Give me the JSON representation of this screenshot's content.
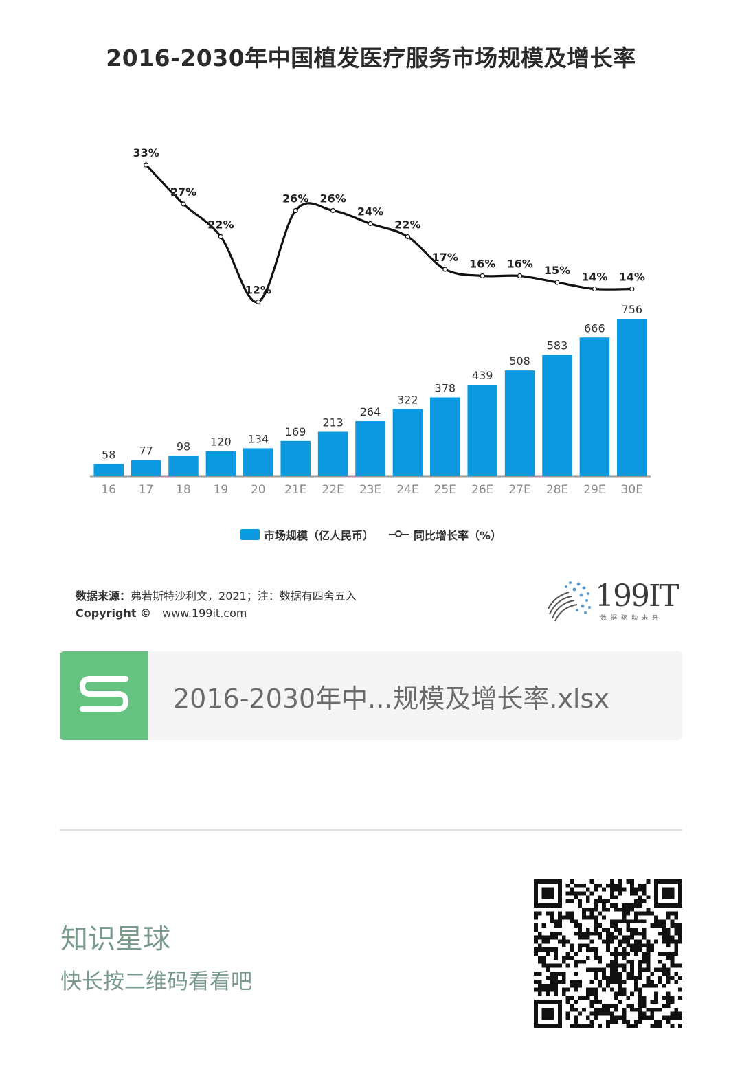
{
  "chart_data": {
    "type": "bar",
    "title": "2016-2030年中国植发医疗服务市场规模及增长率",
    "categories": [
      "16",
      "17",
      "18",
      "19",
      "20",
      "21E",
      "22E",
      "23E",
      "24E",
      "25E",
      "26E",
      "27E",
      "28E",
      "29E",
      "30E"
    ],
    "series": [
      {
        "name": "市场规模（亿人民币）",
        "type": "bar",
        "values": [
          58,
          77,
          98,
          120,
          134,
          169,
          213,
          264,
          322,
          378,
          439,
          508,
          583,
          666,
          756
        ]
      },
      {
        "name": "同比增长率（%）",
        "type": "line",
        "values": [
          null,
          33,
          27,
          22,
          12,
          26,
          26,
          24,
          22,
          17,
          16,
          16,
          15,
          14,
          14
        ]
      }
    ],
    "legend_position": "bottom-center",
    "grid": false,
    "colors": {
      "bar": "#0c99df",
      "line": "#111111"
    }
  },
  "source": {
    "label": "数据来源：",
    "text": "弗若斯特沙利文，2021；注：数据有四舍五入",
    "copyright_label": "Copyright ©",
    "url": "www.199it.com"
  },
  "logo": {
    "text": "199IT",
    "sub": "数据驱动未来"
  },
  "file_card": {
    "icon": "spreadsheet-icon",
    "icon_letter": "S",
    "filename": "2016-2030年中...规模及增长率.xlsx",
    "accent": "#65c281"
  },
  "promo": {
    "title": "知识星球",
    "subtitle": "快长按二维码看看吧"
  }
}
